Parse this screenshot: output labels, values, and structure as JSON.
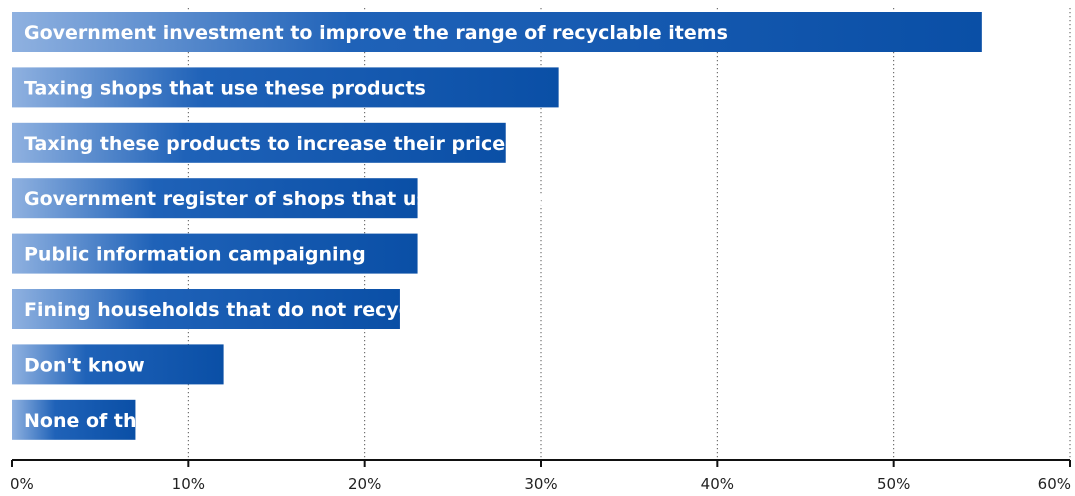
{
  "chart_data": {
    "type": "bar",
    "orientation": "horizontal",
    "categories": [
      "Government investment to improve the range of recyclable items",
      "Taxing shops that use these products",
      "Taxing these products to increase their price",
      "Government register of shops that use these products",
      "Public information campaigning",
      "Fining households that do not recycle enough",
      "Don't know",
      "None of these"
    ],
    "values": [
      55,
      31,
      28,
      23,
      23,
      22,
      12,
      7
    ],
    "xlim": [
      0,
      60
    ],
    "xticks": [
      0,
      10,
      20,
      30,
      40,
      50,
      60
    ],
    "xtick_labels": [
      "0%",
      "10%",
      "20%",
      "30%",
      "40%",
      "50%",
      "60%"
    ],
    "grid": "vertical-dotted",
    "legend": "none",
    "title": "",
    "xlabel": "",
    "ylabel": "",
    "colors": {
      "bar_dark": "#0a4fa6",
      "bar_light": "#8fb1e0",
      "label_text": "#ffffff"
    }
  }
}
